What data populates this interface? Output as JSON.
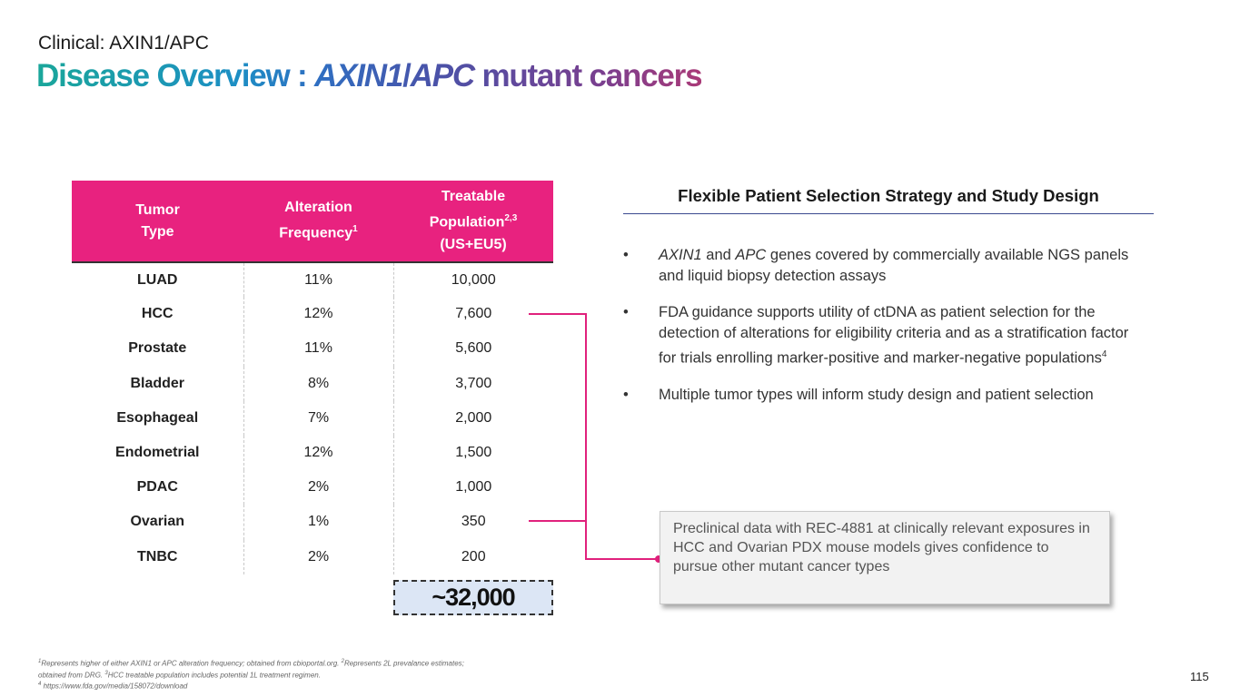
{
  "header": {
    "subtitle": "Clinical: AXIN1/APC",
    "title_part1": "Disease Overview : ",
    "title_axin1": "AXIN1",
    "title_slash": "/",
    "title_apc": "APC",
    "title_part2": " mutant cancers"
  },
  "table": {
    "headers": {
      "c0_line1": "Tumor",
      "c0_line2": "Type",
      "c1_line1": "Alteration",
      "c1_line2": "Frequency",
      "c1_sup": "1",
      "c2_line1": "Treatable",
      "c2_line2": "Population",
      "c2_sup": "2,3",
      "c2_line3": "(US+EU5)"
    },
    "rows": [
      {
        "type": "LUAD",
        "freq": "11%",
        "pop": "10,000"
      },
      {
        "type": "HCC",
        "freq": "12%",
        "pop": "7,600"
      },
      {
        "type": "Prostate",
        "freq": "11%",
        "pop": "5,600"
      },
      {
        "type": "Bladder",
        "freq": "8%",
        "pop": "3,700"
      },
      {
        "type": "Esophageal",
        "freq": "7%",
        "pop": "2,000"
      },
      {
        "type": "Endometrial",
        "freq": "12%",
        "pop": "1,500"
      },
      {
        "type": "PDAC",
        "freq": "2%",
        "pop": "1,000"
      },
      {
        "type": "Ovarian",
        "freq": "1%",
        "pop": "350"
      },
      {
        "type": "TNBC",
        "freq": "2%",
        "pop": "200"
      }
    ],
    "total": "~32,000"
  },
  "panel": {
    "title": "Flexible Patient Selection Strategy and Study Design",
    "bullet_glyph": "•",
    "b1_axin1": "AXIN1",
    "b1_and": " and ",
    "b1_apc": "APC",
    "b1_rest": " genes covered by commercially available NGS panels and liquid biopsy detection assays",
    "b2_text": "FDA guidance supports utility of ctDNA as patient selection for the detection of alterations for eligibility criteria and as a stratification factor for trials enrolling marker-positive and marker-negative populations",
    "b2_sup": "4",
    "b3_text": "Multiple tumor types will inform study design and patient selection"
  },
  "callout": {
    "text": "Preclinical data with REC-4881 at clinically relevant exposures in HCC and Ovarian PDX mouse models gives confidence to pursue other mutant cancer types"
  },
  "footnotes": {
    "s1": "1",
    "t1": "Represents higher of either AXIN1 or APC alteration frequency; obtained from cbioportal.org. ",
    "s2": "2",
    "t2": "Represents 2L prevalance estimates; obtained from DRG. ",
    "s3": "3",
    "t3": "HCC treatable population includes potential 1L treatment regimen.",
    "s4": "4",
    "t4": " https://www.fda.gov/media/158072/download"
  },
  "page_number": "115",
  "colors": {
    "table_header": "#e8227f",
    "connector": "#e0217c",
    "title_gradient_start": "#1aa69a",
    "title_gradient_end": "#a93a78",
    "total_fill": "#dce6f5"
  }
}
